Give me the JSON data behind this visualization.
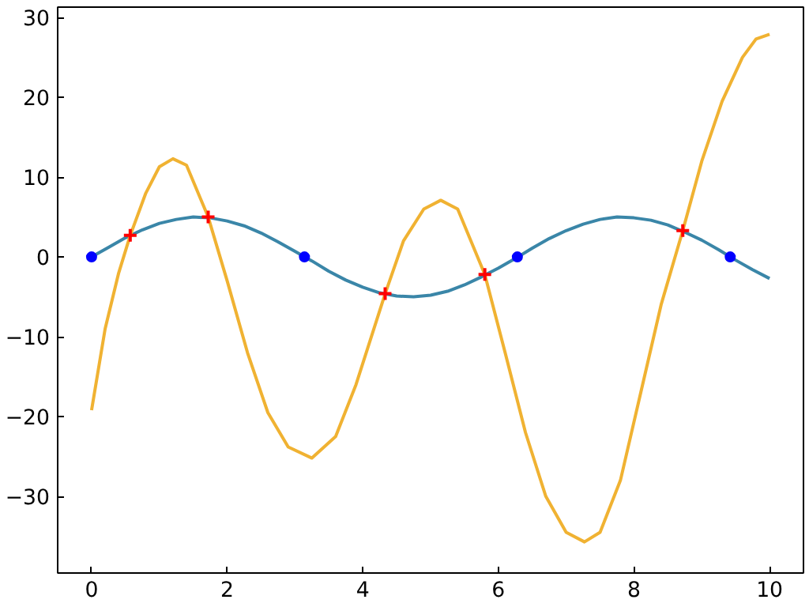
{
  "chart_data": {
    "type": "line",
    "xlim": [
      -0.5,
      10.5
    ],
    "ylim": [
      -39.6,
      31.3
    ],
    "xticks": [
      0,
      2,
      4,
      6,
      8,
      10
    ],
    "yticks": [
      -30,
      -20,
      -10,
      0,
      10,
      20,
      30
    ],
    "grid": false,
    "series": [
      {
        "color": "#3a86a8",
        "x": [
          0,
          0.25,
          0.5,
          0.75,
          1,
          1.25,
          1.5,
          1.75,
          2,
          2.25,
          2.5,
          2.75,
          3,
          3.25,
          3.5,
          3.75,
          4,
          4.25,
          4.5,
          4.75,
          5,
          5.25,
          5.5,
          5.75,
          6,
          6.25,
          6.5,
          6.75,
          7,
          7.25,
          7.5,
          7.75,
          8,
          8.25,
          8.5,
          8.75,
          9,
          9.25,
          9.5,
          9.75,
          10
        ],
        "values": [
          0,
          1.2,
          2.4,
          3.4,
          4.2,
          4.7,
          5.0,
          4.9,
          4.5,
          3.9,
          3.0,
          1.9,
          0.7,
          -0.5,
          -1.8,
          -2.9,
          -3.8,
          -4.5,
          -4.9,
          -5.0,
          -4.8,
          -4.3,
          -3.5,
          -2.5,
          -1.4,
          -0.2,
          1.1,
          2.3,
          3.3,
          4.1,
          4.7,
          5.0,
          4.9,
          4.6,
          4.0,
          3.1,
          2.1,
          0.9,
          -0.4,
          -1.6,
          -2.7
        ]
      },
      {
        "color": "#f0b232",
        "x": [
          0,
          0.2,
          0.4,
          0.57,
          0.8,
          1.0,
          1.2,
          1.4,
          1.72,
          2.0,
          2.3,
          2.6,
          2.9,
          3.25,
          3.6,
          3.9,
          4.33,
          4.6,
          4.9,
          5.15,
          5.4,
          5.8,
          6.1,
          6.4,
          6.7,
          7.0,
          7.27,
          7.5,
          7.8,
          8.1,
          8.4,
          8.72,
          9.0,
          9.3,
          9.6,
          9.8,
          10
        ],
        "values": [
          -19.2,
          -9,
          -2,
          2.7,
          8,
          11.3,
          12.3,
          11.5,
          5.0,
          -3,
          -12,
          -19.5,
          -23.8,
          -25.2,
          -22.5,
          -16,
          -4.6,
          2,
          6,
          7.1,
          6,
          -2.2,
          -12,
          -22,
          -30,
          -34.5,
          -35.7,
          -34.5,
          -28,
          -17,
          -6,
          3.3,
          12,
          19.5,
          25,
          27.3,
          27.9
        ]
      },
      {
        "type": "scatter",
        "marker": "circle",
        "color": "#0000ff",
        "x": [
          0,
          3.14,
          6.28,
          9.42
        ],
        "values": [
          0,
          0,
          0,
          0
        ]
      },
      {
        "type": "scatter",
        "marker": "cross",
        "color": "#ff0000",
        "x": [
          0.57,
          1.72,
          4.33,
          5.8,
          8.72
        ],
        "values": [
          2.7,
          5.0,
          -4.6,
          -2.2,
          3.3
        ]
      }
    ]
  }
}
